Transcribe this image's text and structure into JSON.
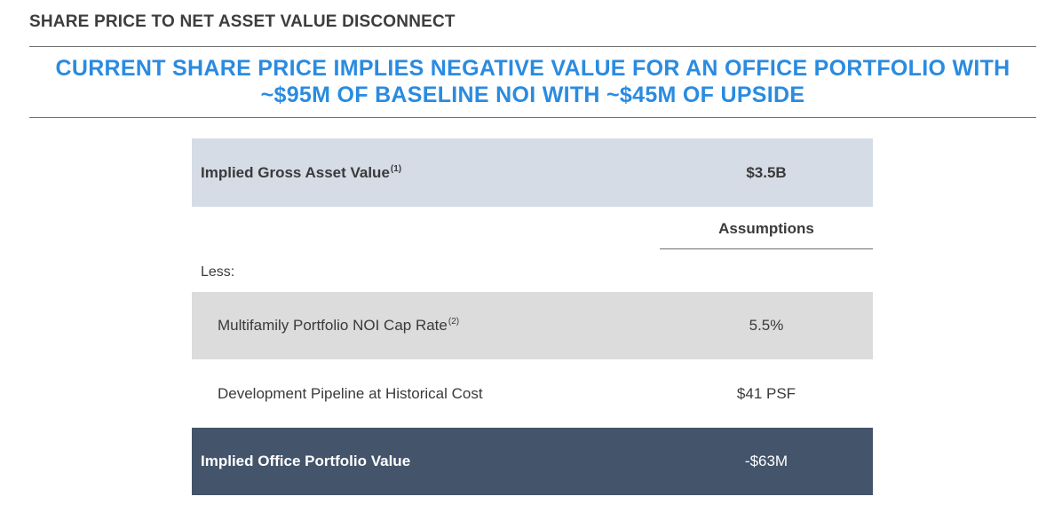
{
  "header": {
    "section_title": "SHARE PRICE TO NET ASSET VALUE DISCONNECT",
    "headline_line1": "CURRENT SHARE PRICE IMPLIES NEGATIVE VALUE FOR AN OFFICE PORTFOLIO WITH",
    "headline_line2": "~$95M OF BASELINE NOI WITH ~$45M OF UPSIDE"
  },
  "colors": {
    "headline": "#2a8be0",
    "gross_row_bg": "#d5dce5",
    "multifamily_row_bg": "#dcdcdc",
    "office_row_bg": "#43546b"
  },
  "table": {
    "gross": {
      "label": "Implied Gross Asset Value",
      "footnote": "(1)",
      "value": "$3.5B"
    },
    "assumptions_header": "Assumptions",
    "less_label": "Less:",
    "multifamily": {
      "label": "Multifamily Portfolio NOI Cap Rate",
      "footnote": "(2)",
      "value": "5.5%"
    },
    "development": {
      "label": "Development Pipeline at Historical Cost",
      "value": "$41 PSF"
    },
    "office": {
      "label": "Implied Office Portfolio Value",
      "value": "-$63M"
    }
  }
}
